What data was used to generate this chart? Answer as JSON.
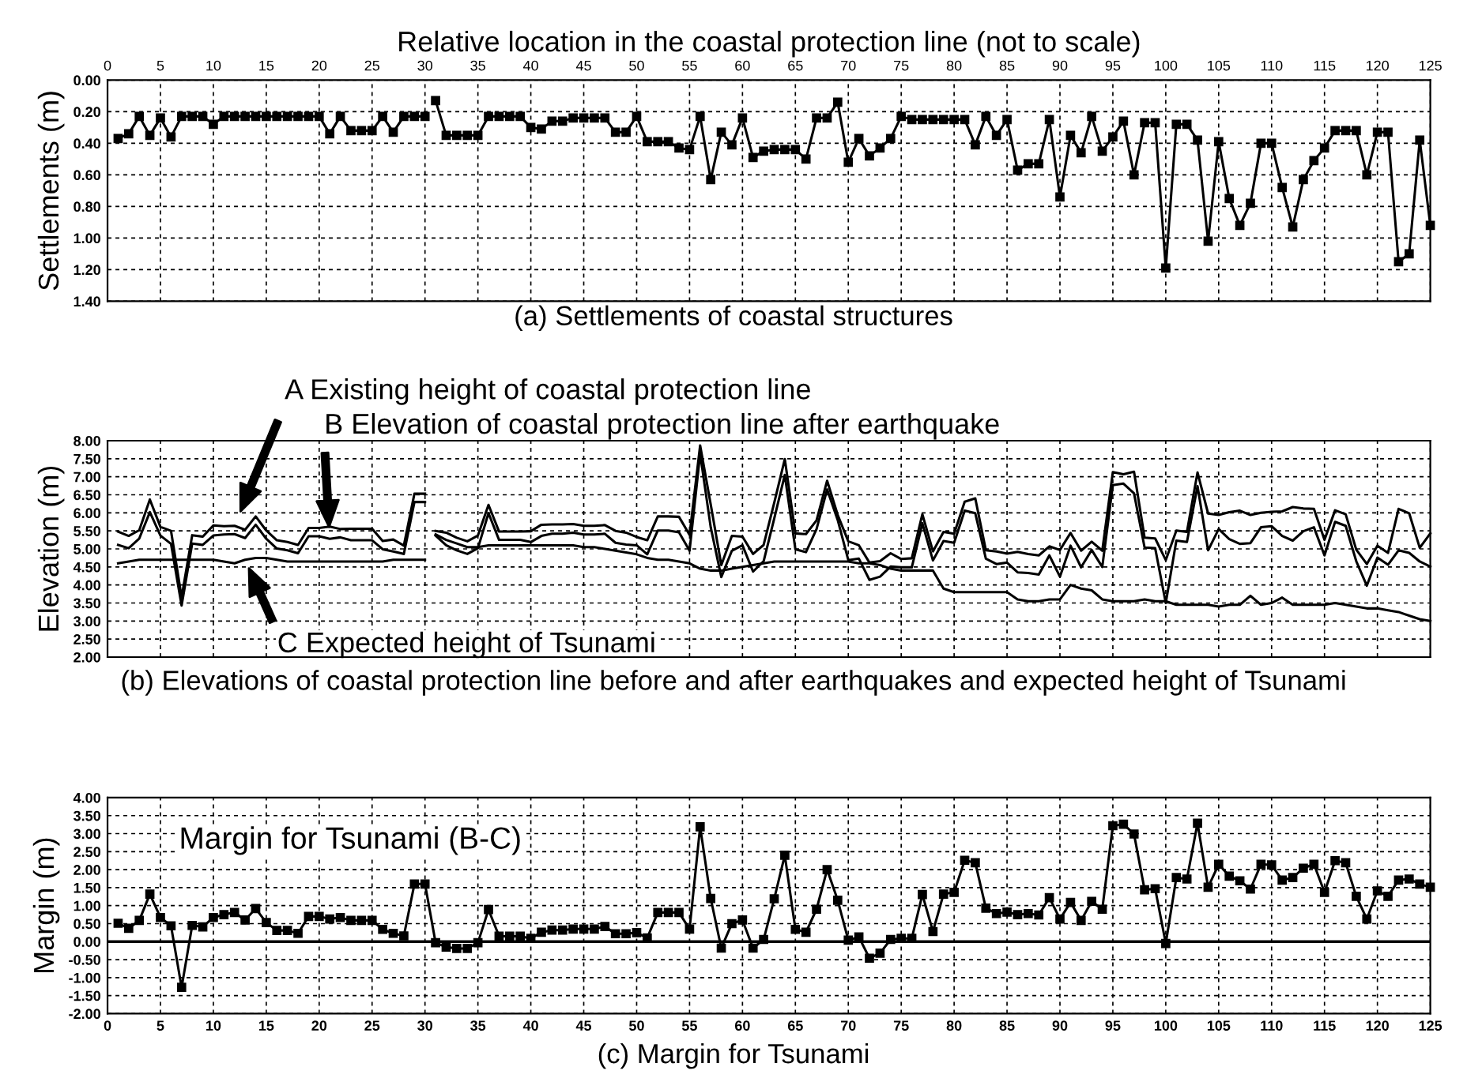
{
  "chart_data": [
    {
      "type": "line",
      "title": "(a) Settlements of coastal structures",
      "xlabel": "Relative location in the coastal protection line (not to scale)",
      "ylabel": "Settlements (m)",
      "x": [
        1,
        2,
        3,
        4,
        5,
        6,
        7,
        8,
        9,
        10,
        11,
        12,
        13,
        14,
        15,
        16,
        17,
        18,
        19,
        20,
        21,
        22,
        23,
        24,
        25,
        26,
        27,
        28,
        29,
        30,
        30.5,
        31,
        32,
        33,
        34,
        35,
        36,
        37,
        38,
        39,
        40,
        41,
        42,
        43,
        44,
        45,
        46,
        47,
        48,
        49,
        50,
        51,
        52,
        53,
        54,
        55,
        56,
        57,
        58,
        59,
        60,
        61,
        62,
        63,
        64,
        65,
        66,
        67,
        68,
        69,
        70,
        71,
        72,
        73,
        74,
        75,
        76,
        77,
        78,
        79,
        80,
        81,
        82,
        83,
        84,
        85,
        86,
        87,
        88,
        89,
        90,
        91,
        92,
        93,
        94,
        95,
        96,
        97,
        98,
        99,
        100,
        101,
        102,
        103,
        104,
        105,
        106,
        107,
        108,
        109,
        110,
        111,
        112,
        113,
        114,
        115,
        116,
        117,
        118,
        119,
        120,
        121,
        122,
        123,
        124,
        125
      ],
      "series": [
        {
          "color": "#000000",
          "values": [
            0.37,
            0.34,
            0.23,
            0.35,
            0.24,
            0.36,
            0.23,
            0.23,
            0.23,
            0.28,
            0.23,
            0.23,
            0.23,
            0.23,
            0.23,
            0.23,
            0.23,
            0.23,
            0.23,
            0.23,
            0.34,
            0.23,
            0.32,
            0.32,
            0.32,
            0.23,
            0.33,
            0.23,
            0.23,
            0.23,
            null,
            0.13,
            0.35,
            0.35,
            0.35,
            0.35,
            0.23,
            0.23,
            0.23,
            0.23,
            0.3,
            0.31,
            0.26,
            0.26,
            0.24,
            0.24,
            0.24,
            0.24,
            0.33,
            0.33,
            0.23,
            0.39,
            0.39,
            0.39,
            0.43,
            0.44,
            0.23,
            0.63,
            0.33,
            0.41,
            0.24,
            0.49,
            0.45,
            0.44,
            0.44,
            0.44,
            0.5,
            0.24,
            0.24,
            0.14,
            0.52,
            0.37,
            0.48,
            0.43,
            0.37,
            0.23,
            0.25,
            0.25,
            0.25,
            0.25,
            0.25,
            0.25,
            0.41,
            0.23,
            0.35,
            0.25,
            0.57,
            0.53,
            0.53,
            0.25,
            0.74,
            0.35,
            0.46,
            0.23,
            0.45,
            0.36,
            0.26,
            0.6,
            0.27,
            0.27,
            1.19,
            0.28,
            0.28,
            0.38,
            1.02,
            0.39,
            0.75,
            0.92,
            0.78,
            0.4,
            0.4,
            0.68,
            0.93,
            0.63,
            0.51,
            0.43,
            0.32,
            0.32,
            0.32,
            0.6,
            0.33,
            0.33,
            1.15,
            1.1,
            0.38,
            0.92
          ]
        }
      ],
      "xlim": [
        0,
        125
      ],
      "xticks": [
        0,
        5,
        10,
        15,
        20,
        25,
        30,
        35,
        40,
        45,
        50,
        55,
        60,
        65,
        70,
        75,
        80,
        85,
        90,
        95,
        100,
        105,
        110,
        115,
        120,
        125
      ],
      "ylim": [
        1.4,
        0
      ],
      "yticks": [
        {
          "value": 0,
          "label": "0.00"
        },
        {
          "value": 0.2,
          "label": "0.20"
        },
        {
          "value": 0.4,
          "label": "0.40"
        },
        {
          "value": 0.6,
          "label": "0.60"
        },
        {
          "value": 0.8,
          "label": "0.80"
        },
        {
          "value": 1.0,
          "label": "1.00"
        },
        {
          "value": 1.2,
          "label": "1.20"
        },
        {
          "value": 1.4,
          "label": "1.40"
        }
      ],
      "grid": true,
      "marker": "square",
      "line_style": "solid"
    },
    {
      "type": "line",
      "title": "(b) Elevations of coastal protection line before and after earthquakes and expected height of Tsunami",
      "ylabel": "Elevation (m)",
      "x": [
        1,
        2,
        3,
        4,
        5,
        6,
        7,
        8,
        9,
        10,
        11,
        12,
        13,
        14,
        15,
        16,
        17,
        18,
        19,
        20,
        21,
        22,
        23,
        24,
        25,
        26,
        27,
        28,
        29,
        30,
        30.5,
        31,
        32,
        33,
        34,
        35,
        36,
        37,
        38,
        39,
        40,
        41,
        42,
        43,
        44,
        45,
        46,
        47,
        48,
        49,
        50,
        51,
        52,
        53,
        54,
        55,
        56,
        57,
        58,
        59,
        60,
        61,
        62,
        63,
        64,
        65,
        66,
        67,
        68,
        69,
        70,
        71,
        72,
        73,
        74,
        75,
        76,
        77,
        78,
        79,
        80,
        81,
        82,
        83,
        84,
        85,
        86,
        87,
        88,
        89,
        90,
        91,
        92,
        93,
        94,
        95,
        96,
        97,
        98,
        99,
        100,
        101,
        102,
        103,
        104,
        105,
        106,
        107,
        108,
        109,
        110,
        111,
        112,
        113,
        114,
        115,
        116,
        117,
        118,
        119,
        120,
        121,
        122,
        123,
        124,
        125
      ],
      "series": [
        {
          "name": "A Existing height of coastal protection line",
          "color": "#000000",
          "values": [
            5.48,
            5.36,
            5.52,
            6.37,
            5.61,
            5.5,
            3.66,
            5.38,
            5.34,
            5.65,
            5.63,
            5.64,
            5.53,
            5.9,
            5.51,
            5.24,
            5.19,
            5.11,
            5.58,
            5.58,
            5.62,
            5.55,
            5.56,
            5.56,
            5.56,
            5.22,
            5.26,
            5.09,
            6.53,
            6.53,
            null,
            5.5,
            5.45,
            5.31,
            5.21,
            5.37,
            6.22,
            5.48,
            5.48,
            5.48,
            5.49,
            5.67,
            5.68,
            5.68,
            5.69,
            5.64,
            5.64,
            5.66,
            5.5,
            5.45,
            5.33,
            5.24,
            5.9,
            5.9,
            5.89,
            5.39,
            7.87,
            6.23,
            4.55,
            5.36,
            5.34,
            4.86,
            5.11,
            6.28,
            7.49,
            5.43,
            5.41,
            5.79,
            6.89,
            5.94,
            5.21,
            5.1,
            4.62,
            4.66,
            4.88,
            4.72,
            4.74,
            5.96,
            4.93,
            5.47,
            5.42,
            6.31,
            6.4,
            4.96,
            4.93,
            4.87,
            4.92,
            4.86,
            4.82,
            5.07,
            4.97,
            5.44,
            4.95,
            5.2,
            4.95,
            7.13,
            7.07,
            7.14,
            5.31,
            5.29,
            4.69,
            5.51,
            5.47,
            7.12,
            5.98,
            5.94,
            6.02,
            6.06,
            5.94,
            6.0,
            6.03,
            6.04,
            6.16,
            6.12,
            6.11,
            5.25,
            6.07,
            5.96,
            4.98,
            4.58,
            5.09,
            4.89,
            6.11,
            5.99,
            5.03,
            5.43
          ]
        },
        {
          "name": "B Elevation of coastal protection line after earthquake",
          "color": "#000000",
          "values": [
            5.11,
            5.02,
            5.29,
            6.02,
            5.37,
            5.14,
            3.43,
            5.15,
            5.11,
            5.37,
            5.4,
            5.41,
            5.3,
            5.67,
            5.28,
            5.01,
            4.96,
            4.88,
            5.35,
            5.35,
            5.28,
            5.32,
            5.24,
            5.24,
            5.24,
            4.99,
            4.93,
            4.86,
            6.3,
            6.3,
            null,
            5.37,
            5.1,
            4.96,
            4.86,
            5.02,
            5.99,
            5.25,
            5.25,
            5.25,
            5.19,
            5.36,
            5.42,
            5.42,
            5.45,
            5.4,
            5.4,
            5.42,
            5.17,
            5.12,
            5.1,
            4.85,
            5.51,
            5.51,
            5.46,
            4.95,
            7.64,
            5.6,
            4.22,
            4.95,
            5.1,
            4.37,
            4.66,
            5.84,
            7.05,
            4.99,
            4.91,
            5.55,
            6.65,
            5.8,
            4.69,
            4.73,
            4.14,
            4.23,
            4.51,
            4.49,
            4.49,
            5.71,
            4.68,
            5.22,
            5.17,
            6.06,
            5.99,
            4.73,
            4.58,
            4.62,
            4.35,
            4.33,
            4.29,
            4.82,
            4.23,
            5.09,
            4.49,
            4.97,
            4.5,
            6.77,
            6.81,
            6.54,
            5.04,
            5.02,
            3.5,
            5.23,
            5.19,
            6.74,
            4.96,
            5.55,
            5.27,
            5.14,
            5.16,
            5.6,
            5.63,
            5.36,
            5.23,
            5.49,
            5.6,
            4.82,
            5.75,
            5.64,
            4.66,
            3.98,
            4.76,
            4.56,
            4.96,
            4.89,
            4.65,
            4.51
          ]
        },
        {
          "name": "C Expected height of Tsunami",
          "color": "#000000",
          "values": [
            4.6,
            4.65,
            4.7,
            4.7,
            4.7,
            4.7,
            4.7,
            4.7,
            4.7,
            4.7,
            4.65,
            4.6,
            4.7,
            4.75,
            4.75,
            4.7,
            4.65,
            4.65,
            4.65,
            4.65,
            4.65,
            4.65,
            4.65,
            4.65,
            4.65,
            4.65,
            4.7,
            4.7,
            4.7,
            4.7,
            null,
            5.4,
            5.25,
            5.15,
            5.05,
            5.05,
            5.1,
            5.1,
            5.1,
            5.1,
            5.1,
            5.1,
            5.1,
            5.1,
            5.1,
            5.05,
            5.05,
            5.0,
            4.95,
            4.9,
            4.85,
            4.75,
            4.7,
            4.7,
            4.65,
            4.6,
            4.45,
            4.4,
            4.4,
            4.45,
            4.5,
            4.55,
            4.6,
            4.65,
            4.65,
            4.65,
            4.65,
            4.65,
            4.65,
            4.65,
            4.65,
            4.6,
            4.6,
            4.55,
            4.45,
            4.4,
            4.4,
            4.4,
            4.4,
            3.9,
            3.8,
            3.8,
            3.8,
            3.8,
            3.8,
            3.8,
            3.6,
            3.55,
            3.55,
            3.6,
            3.6,
            4.0,
            3.9,
            3.85,
            3.6,
            3.55,
            3.55,
            3.55,
            3.6,
            3.55,
            3.55,
            3.45,
            3.45,
            3.45,
            3.45,
            3.4,
            3.45,
            3.45,
            3.7,
            3.45,
            3.5,
            3.65,
            3.45,
            3.45,
            3.45,
            3.45,
            3.5,
            3.45,
            3.4,
            3.35,
            3.35,
            3.3,
            3.25,
            3.15,
            3.05,
            3.0
          ]
        }
      ],
      "xlim": [
        0,
        125
      ],
      "xticks": [
        0,
        5,
        10,
        15,
        20,
        25,
        30,
        35,
        40,
        45,
        50,
        55,
        60,
        65,
        70,
        75,
        80,
        85,
        90,
        95,
        100,
        105,
        110,
        115,
        120,
        125
      ],
      "tick_labels": "y",
      "ylim": [
        2,
        8
      ],
      "yticks": [
        {
          "value": 2,
          "label": "2.00"
        },
        {
          "value": 2.5,
          "label": "2.50"
        },
        {
          "value": 3,
          "label": "3.00"
        },
        {
          "value": 3.5,
          "label": "3.50"
        },
        {
          "value": 4,
          "label": "4.00"
        },
        {
          "value": 4.5,
          "label": "4.50"
        },
        {
          "value": 5,
          "label": "5.00"
        },
        {
          "value": 5.5,
          "label": "5.50"
        },
        {
          "value": 6,
          "label": "6.00"
        },
        {
          "value": 6.5,
          "label": "6.50"
        },
        {
          "value": 7,
          "label": "7.00"
        },
        {
          "value": 7.5,
          "label": "7.50"
        },
        {
          "value": 8,
          "label": "8.00"
        }
      ],
      "grid": true,
      "line_style": "solid"
    },
    {
      "type": "line",
      "title": "(c) Margin for Tsunami",
      "ylabel": "Margin (m)",
      "x": [
        1,
        2,
        3,
        4,
        5,
        6,
        7,
        8,
        9,
        10,
        11,
        12,
        13,
        14,
        15,
        16,
        17,
        18,
        19,
        20,
        21,
        22,
        23,
        24,
        25,
        26,
        27,
        28,
        29,
        30,
        31,
        32,
        33,
        34,
        35,
        36,
        37,
        38,
        39,
        40,
        41,
        42,
        43,
        44,
        45,
        46,
        47,
        48,
        49,
        50,
        51,
        52,
        53,
        54,
        55,
        56,
        57,
        58,
        59,
        60,
        61,
        62,
        63,
        64,
        65,
        66,
        67,
        68,
        69,
        70,
        71,
        72,
        73,
        74,
        75,
        76,
        77,
        78,
        79,
        80,
        81,
        82,
        83,
        84,
        85,
        86,
        87,
        88,
        89,
        90,
        91,
        92,
        93,
        94,
        95,
        96,
        97,
        98,
        99,
        100,
        101,
        102,
        103,
        104,
        105,
        106,
        107,
        108,
        109,
        110,
        111,
        112,
        113,
        114,
        115,
        116,
        117,
        118,
        119,
        120,
        121,
        122,
        123,
        124,
        125
      ],
      "series": [
        {
          "name": "Margin for Tsunami (B-C)",
          "color": "#000000",
          "values": [
            0.51,
            0.37,
            0.59,
            1.32,
            0.67,
            0.44,
            -1.27,
            0.45,
            0.41,
            0.67,
            0.75,
            0.81,
            0.6,
            0.92,
            0.53,
            0.31,
            0.31,
            0.23,
            0.7,
            0.7,
            0.63,
            0.67,
            0.59,
            0.59,
            0.59,
            0.34,
            0.23,
            0.16,
            1.6,
            1.6,
            -0.03,
            -0.15,
            -0.19,
            -0.19,
            -0.03,
            0.89,
            0.15,
            0.15,
            0.15,
            0.09,
            0.26,
            0.32,
            0.32,
            0.35,
            0.35,
            0.35,
            0.42,
            0.22,
            0.22,
            0.25,
            0.1,
            0.81,
            0.81,
            0.81,
            0.35,
            3.19,
            1.2,
            -0.18,
            0.5,
            0.6,
            -0.18,
            0.06,
            1.19,
            2.4,
            0.34,
            0.26,
            0.9,
            2.0,
            1.15,
            0.04,
            0.13,
            -0.46,
            -0.32,
            0.06,
            0.09,
            0.09,
            1.31,
            0.28,
            1.32,
            1.37,
            2.26,
            2.19,
            0.93,
            0.78,
            0.82,
            0.75,
            0.78,
            0.74,
            1.22,
            0.63,
            1.09,
            0.59,
            1.12,
            0.9,
            3.22,
            3.26,
            2.99,
            1.44,
            1.47,
            -0.05,
            1.78,
            1.74,
            3.29,
            1.51,
            2.15,
            1.82,
            1.69,
            1.46,
            2.15,
            2.13,
            1.71,
            1.78,
            2.04,
            2.15,
            1.37,
            2.25,
            2.19,
            1.26,
            0.63,
            1.41,
            1.26,
            1.71,
            1.74,
            1.6,
            1.51
          ]
        }
      ],
      "xlim": [
        0,
        125
      ],
      "xticks": [
        0,
        5,
        10,
        15,
        20,
        25,
        30,
        35,
        40,
        45,
        50,
        55,
        60,
        65,
        70,
        75,
        80,
        85,
        90,
        95,
        100,
        105,
        110,
        115,
        120,
        125
      ],
      "ylim": [
        -2,
        4
      ],
      "yticks": [
        {
          "value": -2,
          "label": "-2.00"
        },
        {
          "value": -1.5,
          "label": "-1.50"
        },
        {
          "value": -1,
          "label": "-1.00"
        },
        {
          "value": -0.5,
          "label": "-0.50"
        },
        {
          "value": 0,
          "label": "0.00"
        },
        {
          "value": 0.5,
          "label": "0.50"
        },
        {
          "value": 1,
          "label": "1.00"
        },
        {
          "value": 1.5,
          "label": "1.50"
        },
        {
          "value": 2,
          "label": "2.00"
        },
        {
          "value": 2.5,
          "label": "2.50"
        },
        {
          "value": 3,
          "label": "3.00"
        },
        {
          "value": 3.5,
          "label": "3.50"
        },
        {
          "value": 4,
          "label": "4.00"
        }
      ],
      "ref_lines": [
        {
          "axis": "y",
          "value": 0,
          "color": "#000000"
        }
      ],
      "grid": true,
      "marker": "square",
      "line_style": "solid"
    }
  ]
}
